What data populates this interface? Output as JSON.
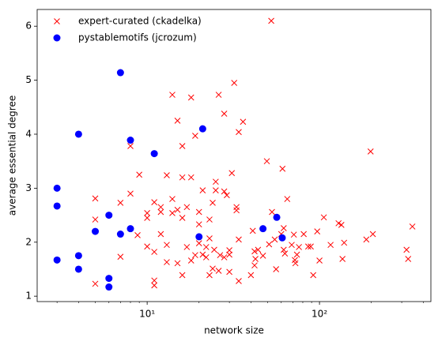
{
  "chart_data": {
    "type": "scatter",
    "x_label": "network size",
    "y_label": "average essential degree",
    "xscale": "log",
    "xlim": [
      2.3,
      443
    ],
    "ylim": [
      0.9,
      6.31
    ],
    "xticks": [
      {
        "value": 10,
        "label": "10¹"
      },
      {
        "value": 100,
        "label": "10²"
      }
    ],
    "xminorticks": [
      3,
      4,
      5,
      6,
      7,
      8,
      9,
      20,
      30,
      40,
      50,
      60,
      70,
      80,
      90,
      200,
      300,
      400
    ],
    "yticks": [
      1,
      2,
      3,
      4,
      5,
      6
    ],
    "legend": "upper-left",
    "series": [
      {
        "name": "expert-curated (ckadelka)",
        "color": "#ff0000",
        "marker": "x",
        "x": [
          5,
          5,
          5,
          7,
          7,
          8,
          8,
          8.8,
          9,
          10,
          10,
          10,
          11,
          11,
          11,
          11,
          12,
          12,
          12,
          13,
          13,
          13,
          14,
          14,
          14,
          15,
          15,
          15,
          16,
          16,
          16,
          16,
          17,
          17,
          18,
          18,
          18,
          19,
          19,
          20,
          20,
          20,
          21,
          21,
          22,
          22,
          23,
          23,
          23,
          24,
          24,
          24.5,
          25,
          25,
          26,
          26,
          26.5,
          28,
          28,
          28,
          29,
          30,
          30,
          30,
          31,
          32,
          33,
          33,
          34,
          34,
          34,
          36,
          40,
          41,
          42,
          42,
          42.5,
          44,
          47,
          49.5,
          51,
          52.5,
          53,
          55,
          56,
          60,
          61,
          62,
          62,
          63,
          65,
          69,
          71,
          72,
          72.5,
          74,
          76,
          81,
          86,
          89,
          92,
          97,
          100,
          106,
          116,
          129,
          134,
          136,
          139,
          187,
          198,
          204,
          320,
          327,
          346
        ],
        "y": [
          2.81,
          2.42,
          1.23,
          2.73,
          1.73,
          3.78,
          2.9,
          2.13,
          3.25,
          2.54,
          2.45,
          1.92,
          2.74,
          1.82,
          1.29,
          1.2,
          2.65,
          2.56,
          2.15,
          3.24,
          1.95,
          1.63,
          4.73,
          2.8,
          2.54,
          4.25,
          2.6,
          1.61,
          3.78,
          3.2,
          2.45,
          1.39,
          2.65,
          1.91,
          4.68,
          3.2,
          1.66,
          3.97,
          1.76,
          2.56,
          2.33,
          1.98,
          2.96,
          1.77,
          1.91,
          1.72,
          2.07,
          2.42,
          1.39,
          1.51,
          2.73,
          1.86,
          2.96,
          3.12,
          4.73,
          1.47,
          1.76,
          4.38,
          2.94,
          1.72,
          2.87,
          1.45,
          1.85,
          1.77,
          3.28,
          4.95,
          2.65,
          2.59,
          4.04,
          2.05,
          1.28,
          4.23,
          1.39,
          2.21,
          1.83,
          1.57,
          1.69,
          1.86,
          1.75,
          3.5,
          1.96,
          6.1,
          2.56,
          2.05,
          1.5,
          2.15,
          3.36,
          1.86,
          2.26,
          1.79,
          2.8,
          1.95,
          2.14,
          1.67,
          1.61,
          1.77,
          1.91,
          2.15,
          1.92,
          1.92,
          1.39,
          2.2,
          1.66,
          2.46,
          1.95,
          2.35,
          2.32,
          1.69,
          1.99,
          2.05,
          3.68,
          2.15,
          1.86,
          1.69,
          2.29
        ]
      },
      {
        "name": "pystablemotifs (jcrozum)",
        "color": "#0000ff",
        "marker": "o",
        "x": [
          3,
          3,
          3,
          4,
          4,
          4,
          5,
          6,
          6,
          6,
          7,
          7,
          8,
          8,
          11,
          20,
          21,
          47,
          56.5,
          60.8
        ],
        "y": [
          3.0,
          2.67,
          1.67,
          4.0,
          1.75,
          1.5,
          2.2,
          2.5,
          1.33,
          1.17,
          5.14,
          2.15,
          3.89,
          2.25,
          3.64,
          2.1,
          4.1,
          2.25,
          2.46,
          2.08
        ]
      }
    ]
  }
}
